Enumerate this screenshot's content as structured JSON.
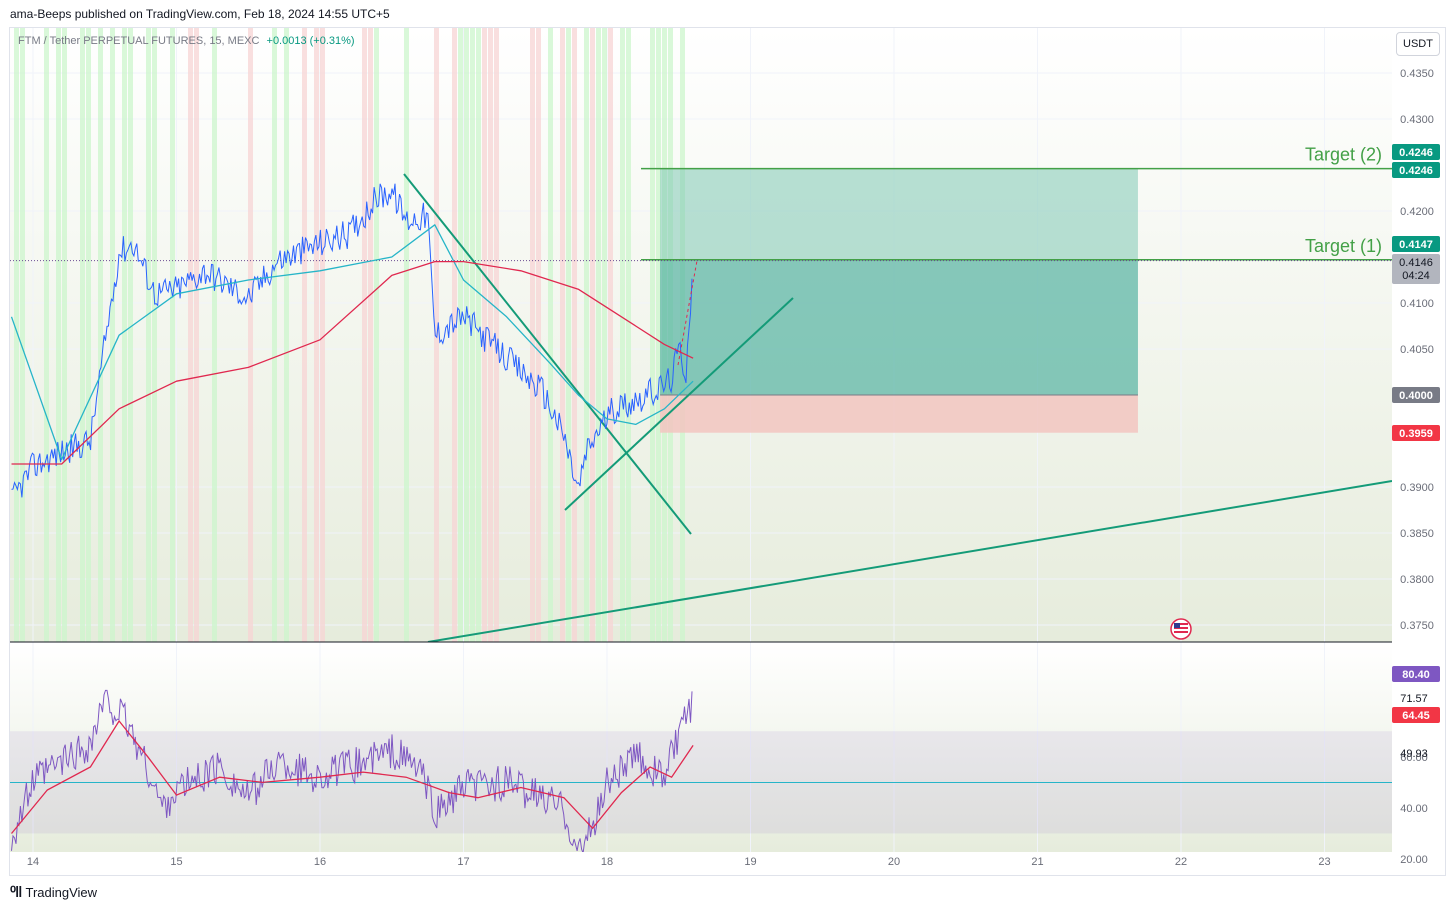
{
  "header": {
    "published": "ama-Beeps published on TradingView.com, Feb 18, 2024 14:55 UTC+5"
  },
  "legend": {
    "symbol": "FTM / Tether PERPETUAL FUTURES, 15, MEXC",
    "change": "+0.0013 (+0.31%)"
  },
  "currency_button": "USDT",
  "footer": {
    "brand": "TradingView"
  },
  "colors": {
    "up_highlight": "#ccf5cc",
    "down_highlight": "#f7d4d4",
    "price_line": "#2962ff",
    "ema_fast": "#26b5c8",
    "ema_slow": "#e0284f",
    "trendline": "#149b78",
    "target_line": "#43a047",
    "profit_zone": "#80c9b5",
    "loss_zone": "#f2c4c0",
    "rsi_line": "#7e57c2",
    "rsi_ma": "#e0284f"
  },
  "chart_data": [
    {
      "type": "line",
      "title": "FTM / Tether PERPETUAL FUTURES, 15, MEXC",
      "x_ticks": [
        "14",
        "15",
        "16",
        "17",
        "18",
        "19",
        "20",
        "21",
        "22",
        "23"
      ],
      "y_ticks": [
        "0.4350",
        "0.4300",
        "0.4200",
        "0.4100",
        "0.4050",
        "0.3900",
        "0.3850",
        "0.3800",
        "0.3750"
      ],
      "ylim": [
        0.372,
        0.439
      ],
      "series": [
        {
          "x": [
            13.85,
            14.0,
            14.2,
            14.4,
            14.5,
            14.6,
            14.7,
            14.85,
            15.0,
            15.2,
            15.5,
            15.7,
            16.0,
            16.2,
            16.4,
            16.5,
            16.6,
            16.75,
            16.8,
            16.9,
            17.0,
            17.2,
            17.4,
            17.55,
            17.7,
            17.8,
            17.85,
            17.95,
            18.05,
            18.2,
            18.35,
            18.45,
            18.5,
            18.55,
            18.6
          ],
          "values": [
            0.3885,
            0.3922,
            0.3938,
            0.395,
            0.4055,
            0.4155,
            0.4165,
            0.411,
            0.4115,
            0.4135,
            0.4105,
            0.4145,
            0.4165,
            0.4175,
            0.4215,
            0.4222,
            0.419,
            0.4195,
            0.4065,
            0.4075,
            0.4085,
            0.4055,
            0.4025,
            0.4005,
            0.3955,
            0.3895,
            0.3935,
            0.3965,
            0.3985,
            0.3995,
            0.4005,
            0.4018,
            0.405,
            0.4025,
            0.4146
          ]
        },
        {
          "name": "",
          "x": [
            13.85,
            14.2,
            14.6,
            15.0,
            15.5,
            16.0,
            16.5,
            16.8,
            17.0,
            17.3,
            17.6,
            17.8,
            18.0,
            18.2,
            18.4,
            18.6
          ],
          "values": [
            0.4085,
            0.393,
            0.4065,
            0.411,
            0.4125,
            0.4135,
            0.415,
            0.4185,
            0.4125,
            0.4085,
            0.4035,
            0.4,
            0.3974,
            0.3968,
            0.3985,
            0.4015
          ]
        },
        {
          "name": "",
          "x": [
            13.85,
            14.2,
            14.6,
            15.0,
            15.5,
            16.0,
            16.5,
            16.8,
            17.0,
            17.4,
            17.8,
            18.0,
            18.2,
            18.4,
            18.6
          ],
          "values": [
            0.3925,
            0.3925,
            0.3985,
            0.4015,
            0.403,
            0.406,
            0.413,
            0.4145,
            0.4145,
            0.4135,
            0.4115,
            0.4095,
            0.4075,
            0.4055,
            0.404
          ]
        }
      ],
      "last_price": "0.4146",
      "countdown": "04:24",
      "annotations": [
        {
          "label": "Target (2)",
          "price": "0.4246"
        },
        {
          "label": "Target (1)",
          "price": "0.4147"
        }
      ],
      "position": {
        "entry": "0.4000",
        "stop": "0.3959",
        "target": "0.4246",
        "x_start": 18.37,
        "x_end": 21.7
      },
      "price_tags": [
        "0.4246",
        "0.4246",
        "0.4147",
        "0.4146",
        "0.4000",
        "0.3959"
      ]
    },
    {
      "type": "line",
      "y_ticks": [
        "60.00",
        "40.00",
        "20.00"
      ],
      "ylim": [
        17,
        87
      ],
      "band": [
        30,
        70
      ],
      "midline": 49.93,
      "series": [
        {
          "x": [
            13.85,
            14.0,
            14.2,
            14.4,
            14.5,
            14.65,
            14.8,
            14.9,
            15.0,
            15.3,
            15.5,
            15.7,
            16.0,
            16.3,
            16.5,
            16.7,
            16.8,
            16.9,
            17.0,
            17.3,
            17.5,
            17.7,
            17.8,
            17.9,
            18.0,
            18.2,
            18.4,
            18.5,
            18.6
          ],
          "values": [
            28,
            50,
            58,
            65,
            82,
            74,
            55,
            40,
            47,
            56,
            44,
            58,
            52,
            58,
            62,
            55,
            38,
            42,
            48,
            50,
            45,
            40,
            22,
            32,
            50,
            60,
            52,
            68,
            80.4
          ]
        },
        {
          "x": [
            13.85,
            14.1,
            14.4,
            14.6,
            14.8,
            15.0,
            15.3,
            15.6,
            16.0,
            16.3,
            16.6,
            16.9,
            17.1,
            17.4,
            17.7,
            17.9,
            18.1,
            18.3,
            18.45,
            18.6
          ],
          "values": [
            30,
            47,
            56,
            74,
            60,
            45,
            52,
            50,
            52,
            54,
            52,
            46,
            44,
            48,
            44,
            32,
            46,
            56,
            52,
            64.45
          ]
        }
      ],
      "price_tags": [
        "80.40",
        "71.57",
        "64.45",
        "49.93"
      ]
    }
  ]
}
